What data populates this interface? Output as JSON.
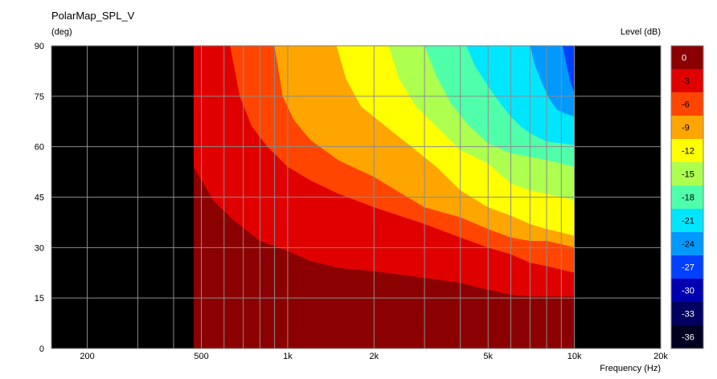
{
  "chart_data": {
    "type": "heatmap",
    "title": "PolarMap_SPL_V",
    "ylabel": "(deg)",
    "xlabel": "Frequency  (Hz)",
    "colorbar_label": "Level  (dB)",
    "x_scale": "log",
    "xlim": [
      150,
      20000
    ],
    "ylim": [
      0,
      90
    ],
    "grid": true,
    "data_xrange": [
      470,
      10000
    ],
    "background_color": "#000000",
    "x_ticks": [
      {
        "value": 150,
        "label": ""
      },
      {
        "value": 200,
        "label": "200"
      },
      {
        "value": 300,
        "label": ""
      },
      {
        "value": 400,
        "label": ""
      },
      {
        "value": 500,
        "label": "500"
      },
      {
        "value": 600,
        "label": ""
      },
      {
        "value": 700,
        "label": ""
      },
      {
        "value": 800,
        "label": ""
      },
      {
        "value": 900,
        "label": ""
      },
      {
        "value": 1000,
        "label": "1k"
      },
      {
        "value": 2000,
        "label": "2k"
      },
      {
        "value": 3000,
        "label": ""
      },
      {
        "value": 4000,
        "label": ""
      },
      {
        "value": 5000,
        "label": "5k"
      },
      {
        "value": 6000,
        "label": ""
      },
      {
        "value": 7000,
        "label": ""
      },
      {
        "value": 8000,
        "label": ""
      },
      {
        "value": 9000,
        "label": ""
      },
      {
        "value": 10000,
        "label": "10k"
      },
      {
        "value": 20000,
        "label": "20k"
      }
    ],
    "y_ticks": [
      0,
      15,
      30,
      45,
      60,
      75,
      90
    ],
    "levels": [
      {
        "label": "0",
        "color": "#8b0000"
      },
      {
        "label": "-3",
        "color": "#e00000"
      },
      {
        "label": "-6",
        "color": "#ff4500"
      },
      {
        "label": "-9",
        "color": "#ffa500"
      },
      {
        "label": "-12",
        "color": "#ffff00"
      },
      {
        "label": "-15",
        "color": "#adff50"
      },
      {
        "label": "-18",
        "color": "#50ffaa"
      },
      {
        "label": "-21",
        "color": "#00e6ff"
      },
      {
        "label": "-24",
        "color": "#0099ff"
      },
      {
        "label": "-27",
        "color": "#0040ff"
      },
      {
        "label": "-30",
        "color": "#0000b0"
      },
      {
        "label": "-33",
        "color": "#000060"
      },
      {
        "label": "-36",
        "color": "#000020"
      }
    ],
    "contours": [
      {
        "level": "-3",
        "points": [
          [
            470,
            54
          ],
          [
            550,
            44
          ],
          [
            650,
            38
          ],
          [
            800,
            32
          ],
          [
            1000,
            29
          ],
          [
            1200,
            26
          ],
          [
            1500,
            24
          ],
          [
            2000,
            23
          ],
          [
            3000,
            21
          ],
          [
            4000,
            19.5
          ],
          [
            5000,
            17.5
          ],
          [
            6000,
            16
          ],
          [
            7000,
            15.5
          ],
          [
            8000,
            15.5
          ],
          [
            10000,
            15.5
          ]
        ]
      },
      {
        "level": "-6",
        "points": [
          [
            630,
            90
          ],
          [
            680,
            75
          ],
          [
            750,
            66
          ],
          [
            850,
            60
          ],
          [
            1000,
            54
          ],
          [
            1200,
            50
          ],
          [
            1500,
            46
          ],
          [
            2000,
            42
          ],
          [
            3000,
            37
          ],
          [
            4000,
            33
          ],
          [
            5000,
            30
          ],
          [
            6000,
            28
          ],
          [
            7000,
            25.5
          ],
          [
            8000,
            24.5
          ],
          [
            10000,
            22.5
          ]
        ]
      },
      {
        "level": "-9",
        "points": [
          [
            900,
            90
          ],
          [
            960,
            75
          ],
          [
            1050,
            68
          ],
          [
            1200,
            62
          ],
          [
            1500,
            56
          ],
          [
            2000,
            51
          ],
          [
            2500,
            46
          ],
          [
            3000,
            42
          ],
          [
            4000,
            39
          ],
          [
            5000,
            35.5
          ],
          [
            6000,
            33
          ],
          [
            7000,
            32
          ],
          [
            8000,
            32
          ],
          [
            9000,
            31
          ],
          [
            10000,
            30
          ]
        ]
      },
      {
        "level": "-12",
        "points": [
          [
            1480,
            90
          ],
          [
            1600,
            80
          ],
          [
            1800,
            72
          ],
          [
            2200,
            66
          ],
          [
            2700,
            60
          ],
          [
            3300,
            54
          ],
          [
            4000,
            47
          ],
          [
            5000,
            42
          ],
          [
            6000,
            39.5
          ],
          [
            7000,
            37
          ],
          [
            8000,
            35.5
          ],
          [
            9000,
            34.5
          ],
          [
            10000,
            33.5
          ]
        ]
      },
      {
        "level": "-15",
        "points": [
          [
            2250,
            90
          ],
          [
            2450,
            80
          ],
          [
            2800,
            72
          ],
          [
            3300,
            66
          ],
          [
            4000,
            59
          ],
          [
            5000,
            55
          ],
          [
            6000,
            49
          ],
          [
            7000,
            47
          ],
          [
            8000,
            46
          ],
          [
            9000,
            45
          ],
          [
            10000,
            44
          ]
        ]
      },
      {
        "level": "-18",
        "points": [
          [
            3000,
            90
          ],
          [
            3300,
            81
          ],
          [
            3700,
            73
          ],
          [
            4200,
            67
          ],
          [
            5000,
            61
          ],
          [
            6000,
            58
          ],
          [
            7000,
            57
          ],
          [
            8000,
            56
          ],
          [
            9000,
            55
          ],
          [
            10000,
            54
          ]
        ]
      },
      {
        "level": "-21",
        "points": [
          [
            4200,
            90
          ],
          [
            4500,
            84
          ],
          [
            5000,
            78
          ],
          [
            5500,
            73
          ],
          [
            6000,
            69
          ],
          [
            6500,
            66
          ],
          [
            7000,
            64
          ],
          [
            8000,
            61.5
          ],
          [
            9000,
            61
          ],
          [
            10000,
            60.5
          ]
        ]
      },
      {
        "level": "-24",
        "points": [
          [
            7000,
            90
          ],
          [
            7300,
            84
          ],
          [
            7700,
            79
          ],
          [
            8200,
            74
          ],
          [
            8700,
            71
          ],
          [
            9200,
            70
          ],
          [
            10000,
            69
          ]
        ]
      },
      {
        "level": "-27",
        "points": [
          [
            9100,
            90
          ],
          [
            9400,
            84
          ],
          [
            9700,
            79
          ],
          [
            10000,
            76
          ]
        ]
      }
    ]
  }
}
